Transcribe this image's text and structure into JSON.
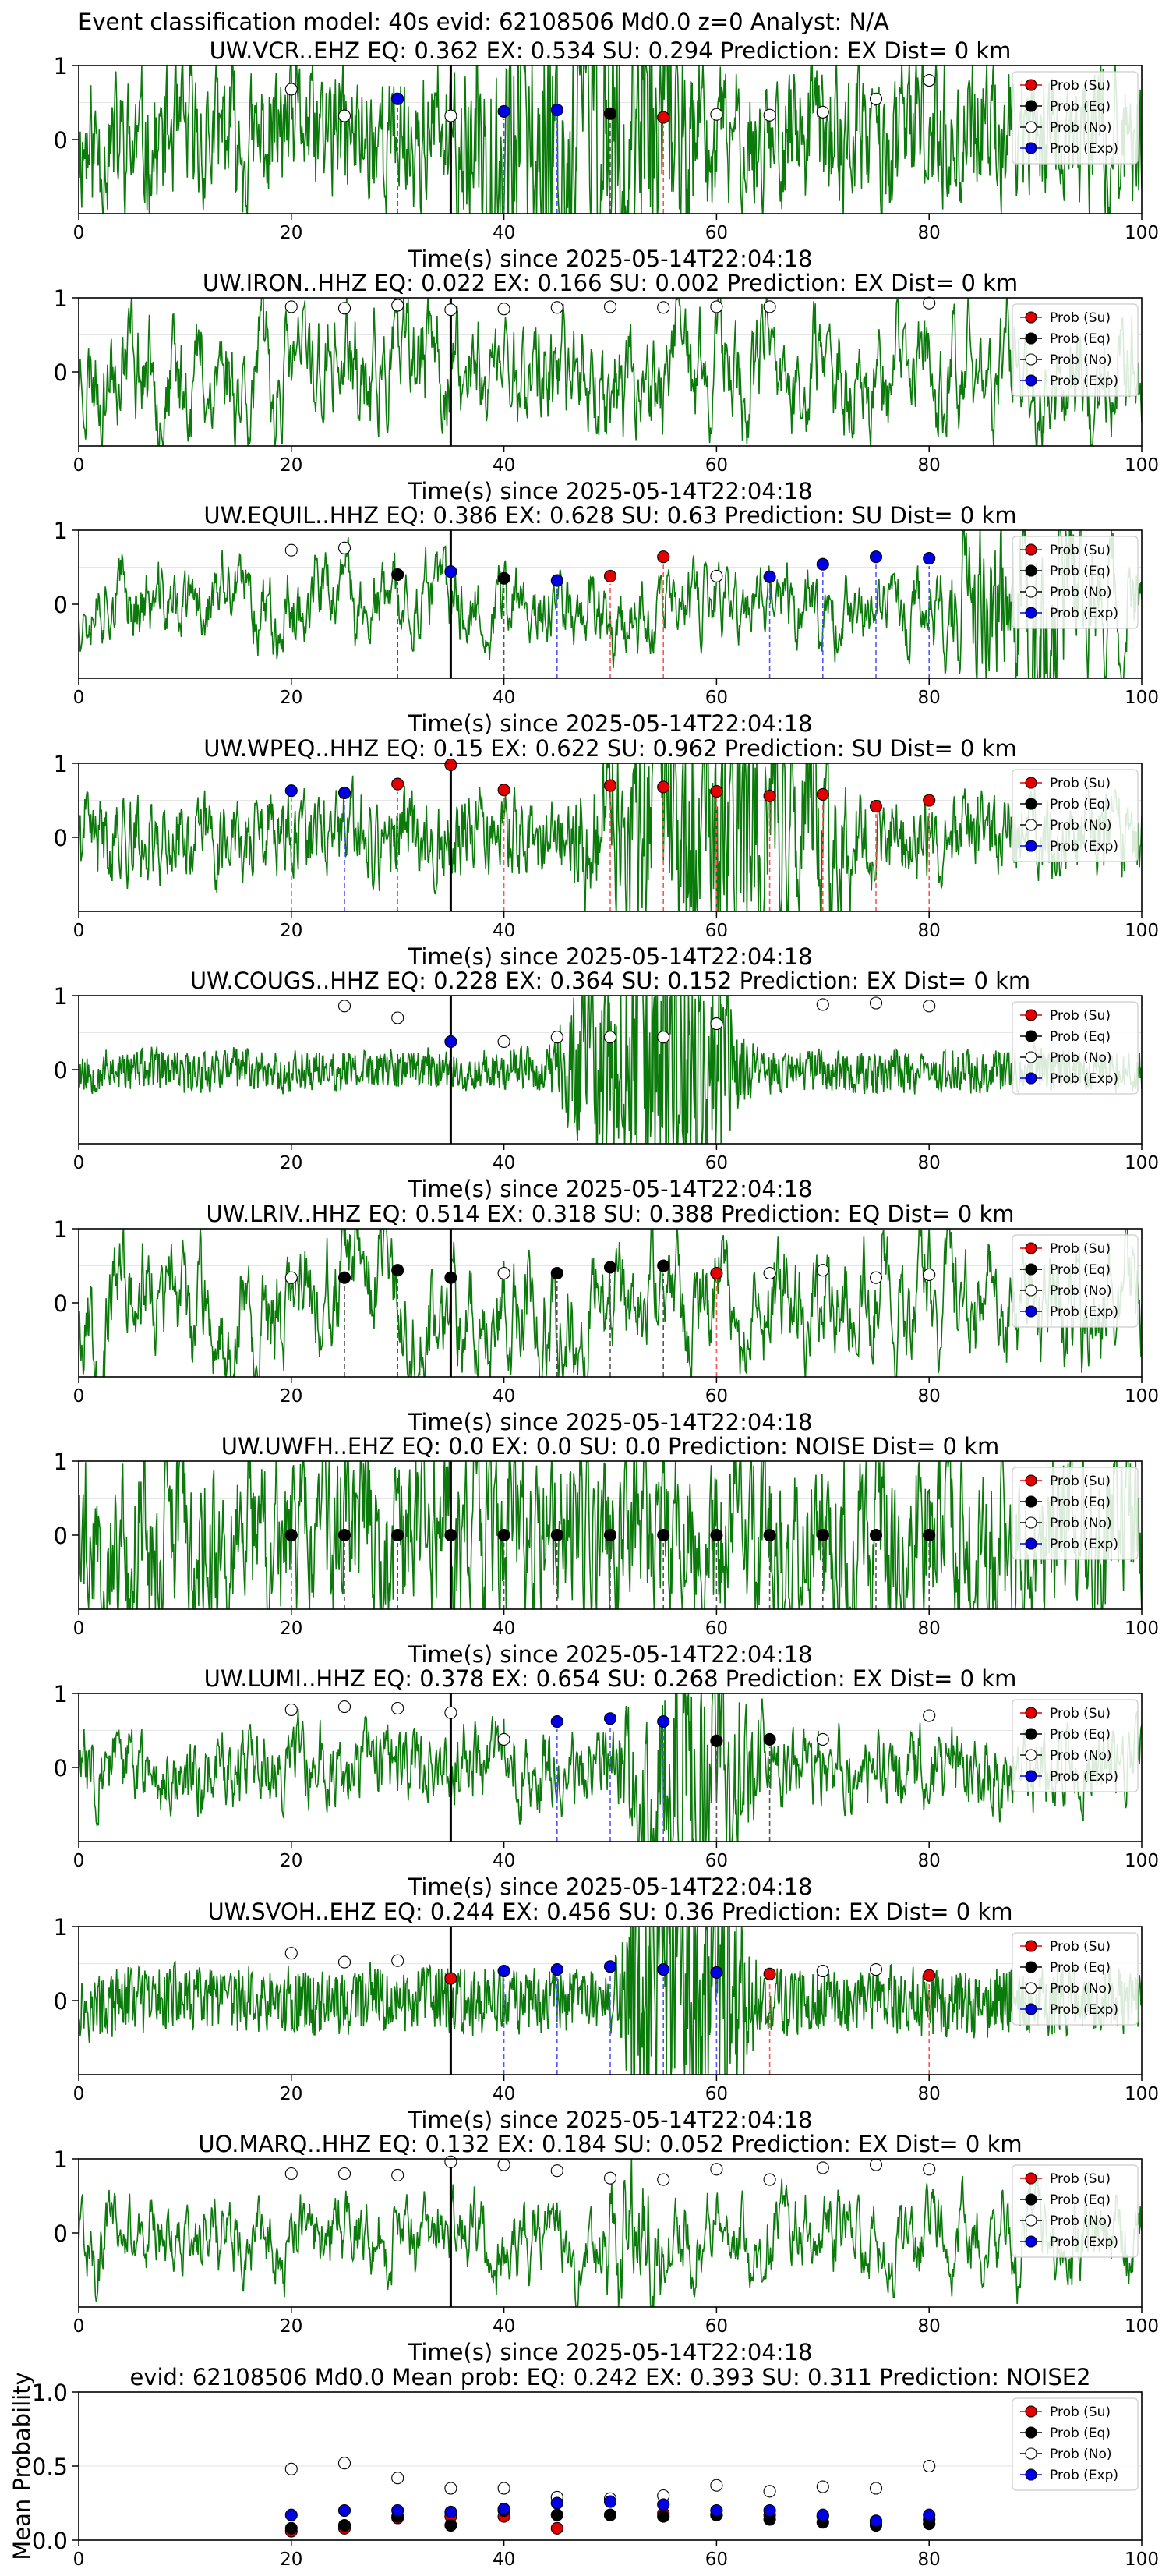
{
  "figure": {
    "suptitle": "Event classification model: 40s evid: 62108506 Md0.0 z=0 Analyst: N/A",
    "xlabel": "Time(s) since 2025-05-14T22:04:18"
  },
  "legend": {
    "su": "Prob (Su)",
    "eq": "Prob (Eq)",
    "no": "Prob (No)",
    "exp": "Prob (Exp)"
  },
  "colors": {
    "su": "#e50000",
    "eq": "#000000",
    "no": "#ffffff",
    "exp": "#0000e5",
    "trace": "#0a7a0a",
    "line_su": "#ff5555",
    "line_eq": "#555555",
    "line_exp": "#5555ff"
  },
  "chart_data": [
    {
      "type": "scatter",
      "title": "UW.VCR..EHZ   EQ: 0.362  EX: 0.534  SU: 0.294   Prediction: EX    Dist= 0 km",
      "xlim": [
        0,
        100
      ],
      "ylim": [
        -1,
        1
      ],
      "xticks": [
        0,
        20,
        40,
        60,
        80,
        100
      ],
      "yticks": [
        0,
        1
      ],
      "arrival": 35,
      "trace": {
        "freq": 0.55,
        "amp": 0.55,
        "burst_start": 35,
        "burst_end": 60,
        "burst_amp": 1.0,
        "seed": 11
      },
      "points": [
        {
          "x": 20,
          "cls": "no",
          "y": 0.68
        },
        {
          "x": 25,
          "cls": "no",
          "y": 0.32
        },
        {
          "x": 30,
          "cls": "exp",
          "y": 0.55
        },
        {
          "x": 35,
          "cls": "no",
          "y": 0.32
        },
        {
          "x": 40,
          "cls": "exp",
          "y": 0.38
        },
        {
          "x": 45,
          "cls": "exp",
          "y": 0.4
        },
        {
          "x": 50,
          "cls": "eq",
          "y": 0.35
        },
        {
          "x": 55,
          "cls": "su",
          "y": 0.3
        },
        {
          "x": 60,
          "cls": "no",
          "y": 0.34
        },
        {
          "x": 65,
          "cls": "no",
          "y": 0.33
        },
        {
          "x": 70,
          "cls": "no",
          "y": 0.37
        },
        {
          "x": 75,
          "cls": "no",
          "y": 0.55
        },
        {
          "x": 80,
          "cls": "no",
          "y": 0.8
        }
      ]
    },
    {
      "type": "scatter",
      "title": "UW.IRON..HHZ   EQ: 0.022  EX: 0.166  SU: 0.002   Prediction: EX    Dist= 0 km",
      "xlim": [
        0,
        100
      ],
      "ylim": [
        -1,
        1
      ],
      "xticks": [
        0,
        20,
        40,
        60,
        80,
        100
      ],
      "yticks": [
        0,
        1
      ],
      "arrival": 35,
      "trace": {
        "freq": 0.25,
        "amp": 0.8,
        "burst_start": 0,
        "burst_end": 0,
        "burst_amp": 0,
        "seed": 23
      },
      "points": [
        {
          "x": 20,
          "cls": "no",
          "y": 0.88
        },
        {
          "x": 25,
          "cls": "no",
          "y": 0.86
        },
        {
          "x": 30,
          "cls": "no",
          "y": 0.9
        },
        {
          "x": 35,
          "cls": "no",
          "y": 0.84
        },
        {
          "x": 40,
          "cls": "no",
          "y": 0.85
        },
        {
          "x": 45,
          "cls": "no",
          "y": 0.87
        },
        {
          "x": 50,
          "cls": "no",
          "y": 0.88
        },
        {
          "x": 55,
          "cls": "no",
          "y": 0.87
        },
        {
          "x": 60,
          "cls": "no",
          "y": 0.88
        },
        {
          "x": 65,
          "cls": "no",
          "y": 0.88
        },
        {
          "x": 80,
          "cls": "no",
          "y": 0.93
        }
      ]
    },
    {
      "type": "scatter",
      "title": "UW.EQUIL..HHZ   EQ: 0.386  EX: 0.628  SU: 0.63   Prediction: SU    Dist= 0 km",
      "xlim": [
        0,
        100
      ],
      "ylim": [
        -1,
        1
      ],
      "xticks": [
        0,
        20,
        40,
        60,
        80,
        100
      ],
      "yticks": [
        0,
        1
      ],
      "arrival": 35,
      "trace": {
        "freq": 0.3,
        "amp": 0.45,
        "burst_start": 80,
        "burst_end": 100,
        "burst_amp": 0.9,
        "seed": 37
      },
      "points": [
        {
          "x": 20,
          "cls": "no",
          "y": 0.73
        },
        {
          "x": 25,
          "cls": "no",
          "y": 0.76
        },
        {
          "x": 30,
          "cls": "eq",
          "y": 0.4
        },
        {
          "x": 35,
          "cls": "exp",
          "y": 0.44
        },
        {
          "x": 40,
          "cls": "eq",
          "y": 0.35
        },
        {
          "x": 45,
          "cls": "exp",
          "y": 0.32
        },
        {
          "x": 50,
          "cls": "su",
          "y": 0.38
        },
        {
          "x": 55,
          "cls": "su",
          "y": 0.64
        },
        {
          "x": 60,
          "cls": "no",
          "y": 0.38
        },
        {
          "x": 65,
          "cls": "exp",
          "y": 0.37
        },
        {
          "x": 70,
          "cls": "exp",
          "y": 0.54
        },
        {
          "x": 75,
          "cls": "exp",
          "y": 0.64
        },
        {
          "x": 80,
          "cls": "exp",
          "y": 0.62
        }
      ]
    },
    {
      "type": "scatter",
      "title": "UW.WPEQ..HHZ   EQ: 0.15  EX: 0.622  SU: 0.962   Prediction: SU    Dist= 0 km",
      "xlim": [
        0,
        100
      ],
      "ylim": [
        -1,
        1
      ],
      "xticks": [
        0,
        20,
        40,
        60,
        80,
        100
      ],
      "yticks": [
        0,
        1
      ],
      "arrival": 35,
      "trace": {
        "freq": 0.5,
        "amp": 0.35,
        "burst_start": 45,
        "burst_end": 75,
        "burst_amp": 0.9,
        "seed": 41
      },
      "points": [
        {
          "x": 20,
          "cls": "exp",
          "y": 0.63
        },
        {
          "x": 25,
          "cls": "exp",
          "y": 0.6
        },
        {
          "x": 30,
          "cls": "su",
          "y": 0.72
        },
        {
          "x": 35,
          "cls": "su",
          "y": 0.98
        },
        {
          "x": 40,
          "cls": "su",
          "y": 0.64
        },
        {
          "x": 50,
          "cls": "su",
          "y": 0.7
        },
        {
          "x": 55,
          "cls": "su",
          "y": 0.68
        },
        {
          "x": 60,
          "cls": "su",
          "y": 0.62
        },
        {
          "x": 65,
          "cls": "su",
          "y": 0.56
        },
        {
          "x": 70,
          "cls": "su",
          "y": 0.58
        },
        {
          "x": 75,
          "cls": "su",
          "y": 0.42
        },
        {
          "x": 80,
          "cls": "su",
          "y": 0.5
        }
      ]
    },
    {
      "type": "scatter",
      "title": "UW.COUGS..HHZ   EQ: 0.228  EX: 0.364  SU: 0.152   Prediction: EX    Dist= 0 km",
      "xlim": [
        0,
        100
      ],
      "ylim": [
        -1,
        1
      ],
      "xticks": [
        0,
        20,
        40,
        60,
        80,
        100
      ],
      "yticks": [
        0,
        1
      ],
      "arrival": 35,
      "trace": {
        "freq": 0.9,
        "amp": 0.12,
        "burst_start": 44,
        "burst_end": 64,
        "burst_amp": 0.8,
        "seed": 53
      },
      "points": [
        {
          "x": 25,
          "cls": "no",
          "y": 0.86
        },
        {
          "x": 30,
          "cls": "no",
          "y": 0.7
        },
        {
          "x": 35,
          "cls": "exp",
          "y": 0.38
        },
        {
          "x": 40,
          "cls": "no",
          "y": 0.38
        },
        {
          "x": 45,
          "cls": "no",
          "y": 0.44
        },
        {
          "x": 50,
          "cls": "no",
          "y": 0.44
        },
        {
          "x": 55,
          "cls": "no",
          "y": 0.44
        },
        {
          "x": 60,
          "cls": "no",
          "y": 0.62
        },
        {
          "x": 70,
          "cls": "no",
          "y": 0.88
        },
        {
          "x": 75,
          "cls": "no",
          "y": 0.9
        },
        {
          "x": 80,
          "cls": "no",
          "y": 0.86
        }
      ]
    },
    {
      "type": "scatter",
      "title": "UW.LRIV..HHZ   EQ: 0.514  EX: 0.318  SU: 0.388   Prediction: EQ    Dist= 0 km",
      "xlim": [
        0,
        100
      ],
      "ylim": [
        -1,
        1
      ],
      "xticks": [
        0,
        20,
        40,
        60,
        80,
        100
      ],
      "yticks": [
        0,
        1
      ],
      "arrival": 35,
      "trace": {
        "freq": 0.22,
        "amp": 0.85,
        "burst_start": 0,
        "burst_end": 0,
        "burst_amp": 0,
        "seed": 67
      },
      "points": [
        {
          "x": 20,
          "cls": "no",
          "y": 0.34
        },
        {
          "x": 25,
          "cls": "eq",
          "y": 0.34
        },
        {
          "x": 30,
          "cls": "eq",
          "y": 0.44
        },
        {
          "x": 35,
          "cls": "eq",
          "y": 0.34
        },
        {
          "x": 40,
          "cls": "no",
          "y": 0.4
        },
        {
          "x": 45,
          "cls": "eq",
          "y": 0.4
        },
        {
          "x": 50,
          "cls": "eq",
          "y": 0.48
        },
        {
          "x": 55,
          "cls": "eq",
          "y": 0.5
        },
        {
          "x": 60,
          "cls": "su",
          "y": 0.4
        },
        {
          "x": 65,
          "cls": "no",
          "y": 0.4
        },
        {
          "x": 70,
          "cls": "no",
          "y": 0.44
        },
        {
          "x": 75,
          "cls": "no",
          "y": 0.34
        },
        {
          "x": 80,
          "cls": "no",
          "y": 0.38
        }
      ]
    },
    {
      "type": "scatter",
      "title": "UW.UWFH..EHZ   EQ: 0.0  EX: 0.0  SU: 0.0   Prediction: NOISE    Dist= 0 km",
      "xlim": [
        0,
        100
      ],
      "ylim": [
        -1,
        1
      ],
      "xticks": [
        0,
        20,
        40,
        60,
        80,
        100
      ],
      "yticks": [
        0,
        1
      ],
      "arrival": 35,
      "trace": {
        "freq": 0.4,
        "amp": 0.95,
        "burst_start": 0,
        "burst_end": 0,
        "burst_amp": 0,
        "seed": 79
      },
      "points": [
        {
          "x": 20,
          "cls": "eq",
          "y": 0.0
        },
        {
          "x": 25,
          "cls": "eq",
          "y": 0.0
        },
        {
          "x": 30,
          "cls": "eq",
          "y": 0.0
        },
        {
          "x": 35,
          "cls": "eq",
          "y": 0.0
        },
        {
          "x": 40,
          "cls": "eq",
          "y": 0.0
        },
        {
          "x": 45,
          "cls": "eq",
          "y": 0.0
        },
        {
          "x": 50,
          "cls": "eq",
          "y": 0.0
        },
        {
          "x": 55,
          "cls": "eq",
          "y": 0.0
        },
        {
          "x": 60,
          "cls": "eq",
          "y": 0.0
        },
        {
          "x": 65,
          "cls": "eq",
          "y": 0.0
        },
        {
          "x": 70,
          "cls": "eq",
          "y": 0.0
        },
        {
          "x": 75,
          "cls": "eq",
          "y": 0.0
        },
        {
          "x": 80,
          "cls": "eq",
          "y": 0.0
        }
      ]
    },
    {
      "type": "scatter",
      "title": "UW.LUMI..HHZ   EQ: 0.378  EX: 0.654  SU: 0.268   Prediction: EX    Dist= 0 km",
      "xlim": [
        0,
        100
      ],
      "ylim": [
        -1,
        1
      ],
      "xticks": [
        0,
        20,
        40,
        60,
        80,
        100
      ],
      "yticks": [
        0,
        1
      ],
      "arrival": 35,
      "trace": {
        "freq": 0.45,
        "amp": 0.35,
        "burst_start": 50,
        "burst_end": 65,
        "burst_amp": 1.0,
        "seed": 83
      },
      "points": [
        {
          "x": 20,
          "cls": "no",
          "y": 0.78
        },
        {
          "x": 25,
          "cls": "no",
          "y": 0.82
        },
        {
          "x": 30,
          "cls": "no",
          "y": 0.8
        },
        {
          "x": 35,
          "cls": "no",
          "y": 0.74
        },
        {
          "x": 40,
          "cls": "no",
          "y": 0.38
        },
        {
          "x": 45,
          "cls": "exp",
          "y": 0.62
        },
        {
          "x": 50,
          "cls": "exp",
          "y": 0.66
        },
        {
          "x": 55,
          "cls": "exp",
          "y": 0.62
        },
        {
          "x": 60,
          "cls": "eq",
          "y": 0.36
        },
        {
          "x": 65,
          "cls": "eq",
          "y": 0.38
        },
        {
          "x": 70,
          "cls": "no",
          "y": 0.38
        },
        {
          "x": 80,
          "cls": "no",
          "y": 0.7
        }
      ]
    },
    {
      "type": "scatter",
      "title": "UW.SVOH..EHZ   EQ: 0.244  EX: 0.456  SU: 0.36   Prediction: EX    Dist= 0 km",
      "xlim": [
        0,
        100
      ],
      "ylim": [
        -1,
        1
      ],
      "xticks": [
        0,
        20,
        40,
        60,
        80,
        100
      ],
      "yticks": [
        0,
        1
      ],
      "arrival": 35,
      "trace": {
        "freq": 1.0,
        "amp": 0.18,
        "burst_start": 50,
        "burst_end": 64,
        "burst_amp": 0.95,
        "seed": 97
      },
      "points": [
        {
          "x": 20,
          "cls": "no",
          "y": 0.64
        },
        {
          "x": 25,
          "cls": "no",
          "y": 0.52
        },
        {
          "x": 30,
          "cls": "no",
          "y": 0.54
        },
        {
          "x": 35,
          "cls": "su",
          "y": 0.3
        },
        {
          "x": 40,
          "cls": "exp",
          "y": 0.4
        },
        {
          "x": 45,
          "cls": "exp",
          "y": 0.42
        },
        {
          "x": 50,
          "cls": "exp",
          "y": 0.46
        },
        {
          "x": 55,
          "cls": "exp",
          "y": 0.42
        },
        {
          "x": 60,
          "cls": "exp",
          "y": 0.38
        },
        {
          "x": 65,
          "cls": "su",
          "y": 0.36
        },
        {
          "x": 70,
          "cls": "no",
          "y": 0.4
        },
        {
          "x": 75,
          "cls": "no",
          "y": 0.42
        },
        {
          "x": 80,
          "cls": "su",
          "y": 0.34
        }
      ]
    },
    {
      "type": "scatter",
      "title": "UO.MARQ..HHZ   EQ: 0.132  EX: 0.184  SU: 0.052   Prediction: EX    Dist= 0 km",
      "xlim": [
        0,
        100
      ],
      "ylim": [
        -1,
        1
      ],
      "xticks": [
        0,
        20,
        40,
        60,
        80,
        100
      ],
      "yticks": [
        0,
        1
      ],
      "arrival": 35,
      "trace": {
        "freq": 0.2,
        "amp": 0.65,
        "burst_start": 48,
        "burst_end": 56,
        "burst_amp": 0.5,
        "seed": 101
      },
      "points": [
        {
          "x": 20,
          "cls": "no",
          "y": 0.8
        },
        {
          "x": 25,
          "cls": "no",
          "y": 0.8
        },
        {
          "x": 30,
          "cls": "no",
          "y": 0.78
        },
        {
          "x": 35,
          "cls": "no",
          "y": 0.96
        },
        {
          "x": 40,
          "cls": "no",
          "y": 0.92
        },
        {
          "x": 45,
          "cls": "no",
          "y": 0.84
        },
        {
          "x": 50,
          "cls": "no",
          "y": 0.74
        },
        {
          "x": 55,
          "cls": "no",
          "y": 0.72
        },
        {
          "x": 60,
          "cls": "no",
          "y": 0.86
        },
        {
          "x": 65,
          "cls": "no",
          "y": 0.72
        },
        {
          "x": 70,
          "cls": "no",
          "y": 0.88
        },
        {
          "x": 75,
          "cls": "no",
          "y": 0.92
        },
        {
          "x": 80,
          "cls": "no",
          "y": 0.86
        }
      ]
    },
    {
      "type": "scatter",
      "title": "evid: 62108506   Md0.0    Mean prob:    EQ: 0.242   EX: 0.393   SU: 0.311    Prediction: NOISE2",
      "ylabel": "Mean Probability",
      "xlim": [
        0,
        100
      ],
      "ylim": [
        0,
        1
      ],
      "xticks": [
        0,
        20,
        40,
        60,
        80,
        100
      ],
      "yticks": [
        0.0,
        0.5,
        1.0
      ],
      "ytick_labels": [
        "0.0",
        "0.5",
        "1.0"
      ],
      "grid": true,
      "series": [
        {
          "name": "Prob (Su)",
          "cls": "su",
          "x": [
            20,
            25,
            30,
            35,
            40,
            45,
            50,
            55,
            60,
            65,
            70,
            75,
            80
          ],
          "y": [
            0.06,
            0.08,
            0.15,
            0.16,
            0.16,
            0.08,
            0.17,
            0.18,
            0.17,
            0.17,
            0.16,
            0.12,
            0.14
          ]
        },
        {
          "name": "Prob (Eq)",
          "cls": "eq",
          "x": [
            20,
            25,
            30,
            35,
            40,
            45,
            50,
            55,
            60,
            65,
            70,
            75,
            80
          ],
          "y": [
            0.08,
            0.1,
            0.16,
            0.1,
            0.2,
            0.17,
            0.17,
            0.16,
            0.17,
            0.14,
            0.12,
            0.1,
            0.11
          ]
        },
        {
          "name": "Prob (No)",
          "cls": "no",
          "x": [
            20,
            25,
            30,
            35,
            40,
            45,
            50,
            55,
            60,
            65,
            70,
            75,
            80
          ],
          "y": [
            0.48,
            0.52,
            0.42,
            0.35,
            0.35,
            0.29,
            0.28,
            0.3,
            0.37,
            0.33,
            0.36,
            0.35,
            0.5
          ]
        },
        {
          "name": "Prob (Exp)",
          "cls": "exp",
          "x": [
            20,
            25,
            30,
            35,
            40,
            45,
            50,
            55,
            60,
            65,
            70,
            75,
            80
          ],
          "y": [
            0.17,
            0.2,
            0.2,
            0.19,
            0.21,
            0.25,
            0.26,
            0.24,
            0.2,
            0.2,
            0.17,
            0.13,
            0.17
          ]
        }
      ]
    }
  ]
}
